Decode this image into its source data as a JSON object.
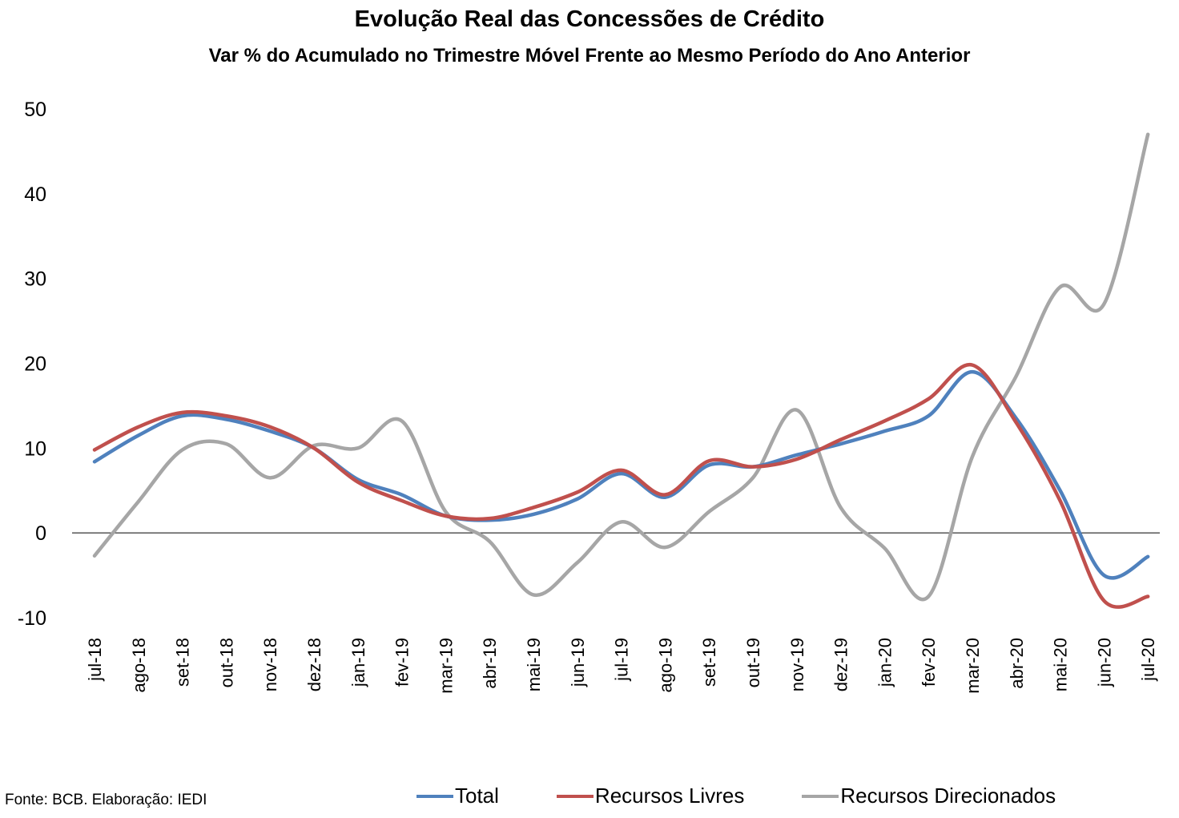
{
  "chart_data": {
    "type": "line",
    "title": "Evolução Real das Concessões de Crédito",
    "subtitle": "Var % do Acumulado no Trimestre Móvel Frente ao Mesmo Período do Ano Anterior",
    "xlabel": "",
    "ylabel": "",
    "categories": [
      "jul-18",
      "ago-18",
      "set-18",
      "out-18",
      "nov-18",
      "dez-18",
      "jan-19",
      "fev-19",
      "mar-19",
      "abr-19",
      "mai-19",
      "jun-19",
      "jul-19",
      "ago-19",
      "set-19",
      "out-19",
      "nov-19",
      "dez-19",
      "jan-20",
      "fev-20",
      "mar-20",
      "abr-20",
      "mai-20",
      "jun-20",
      "jul-20"
    ],
    "ylim": [
      -10,
      50
    ],
    "yticks": [
      "50",
      "40",
      "30",
      "20",
      "10",
      "0",
      "-10"
    ],
    "grid": false,
    "legend_position": "bottom",
    "series": [
      {
        "name": "Total",
        "color": "#4f81bd",
        "values": [
          8.4,
          11.5,
          13.8,
          13.4,
          12.0,
          10.0,
          6.3,
          4.5,
          2.0,
          1.5,
          2.2,
          4.0,
          7.0,
          4.2,
          8.0,
          7.8,
          9.2,
          10.5,
          12.0,
          13.8,
          19.0,
          13.5,
          5.0,
          -5.0,
          -2.8
        ]
      },
      {
        "name": "Recursos Livres",
        "color": "#c0504d",
        "values": [
          9.8,
          12.5,
          14.2,
          13.8,
          12.5,
          10.0,
          6.0,
          3.8,
          2.0,
          1.7,
          3.0,
          4.8,
          7.4,
          4.5,
          8.5,
          7.8,
          8.7,
          11.0,
          13.2,
          15.8,
          19.8,
          13.0,
          3.8,
          -8.0,
          -7.5
        ]
      },
      {
        "name": "Recursos Direcionados",
        "color": "#a6a6a6",
        "values": [
          -2.7,
          3.7,
          9.8,
          10.5,
          6.5,
          10.3,
          10.0,
          13.2,
          2.5,
          -1.0,
          -7.3,
          -3.5,
          1.3,
          -1.7,
          2.5,
          6.5,
          14.5,
          3.0,
          -1.8,
          -7.5,
          9.0,
          18.5,
          29.0,
          27.0,
          47.0
        ]
      }
    ]
  },
  "source_note": "Fonte: BCB. Elaboração: IEDI"
}
